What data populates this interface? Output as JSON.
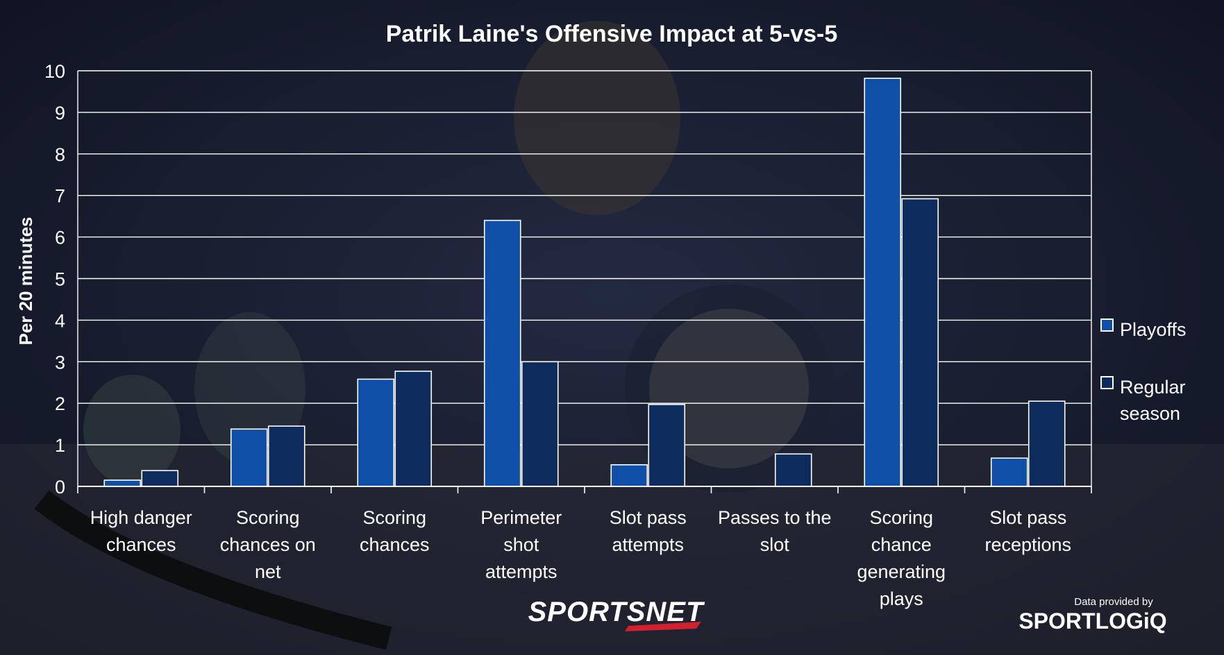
{
  "chart_data": {
    "type": "bar",
    "title": "Patrik Laine's Offensive Impact at 5-vs-5",
    "xlabel": "",
    "ylabel": "Per 20 minutes",
    "ylim": [
      0,
      10
    ],
    "yticks": [
      0,
      1,
      2,
      3,
      4,
      5,
      6,
      7,
      8,
      9,
      10
    ],
    "grid": true,
    "legend_position": "right",
    "categories": [
      [
        "High danger",
        "chances"
      ],
      [
        "Scoring",
        "chances on",
        "net"
      ],
      [
        "Scoring",
        "chances"
      ],
      [
        "Perimeter",
        "shot",
        "attempts"
      ],
      [
        "Slot pass",
        "attempts"
      ],
      [
        "Passes to the",
        "slot"
      ],
      [
        "Scoring",
        "chance",
        "generating",
        "plays"
      ],
      [
        "Slot pass",
        "receptions"
      ]
    ],
    "series": [
      {
        "name": "Playoffs",
        "color": "#0f4fa8",
        "values": [
          0.15,
          1.38,
          2.58,
          6.4,
          0.52,
          0.0,
          9.82,
          0.68
        ]
      },
      {
        "name": "Regular season",
        "color": "#0e2b5e",
        "values": [
          0.38,
          1.45,
          2.77,
          3.0,
          1.97,
          0.78,
          6.92,
          2.05
        ]
      }
    ],
    "legend": {
      "playoffs": "Playoffs",
      "regular_lines": [
        "Regular",
        "season"
      ]
    }
  },
  "branding": {
    "sportsnet": "SPORTSNET",
    "credit_line": "Data provided by",
    "sportlogiq": "SPORTLOGiQ"
  }
}
